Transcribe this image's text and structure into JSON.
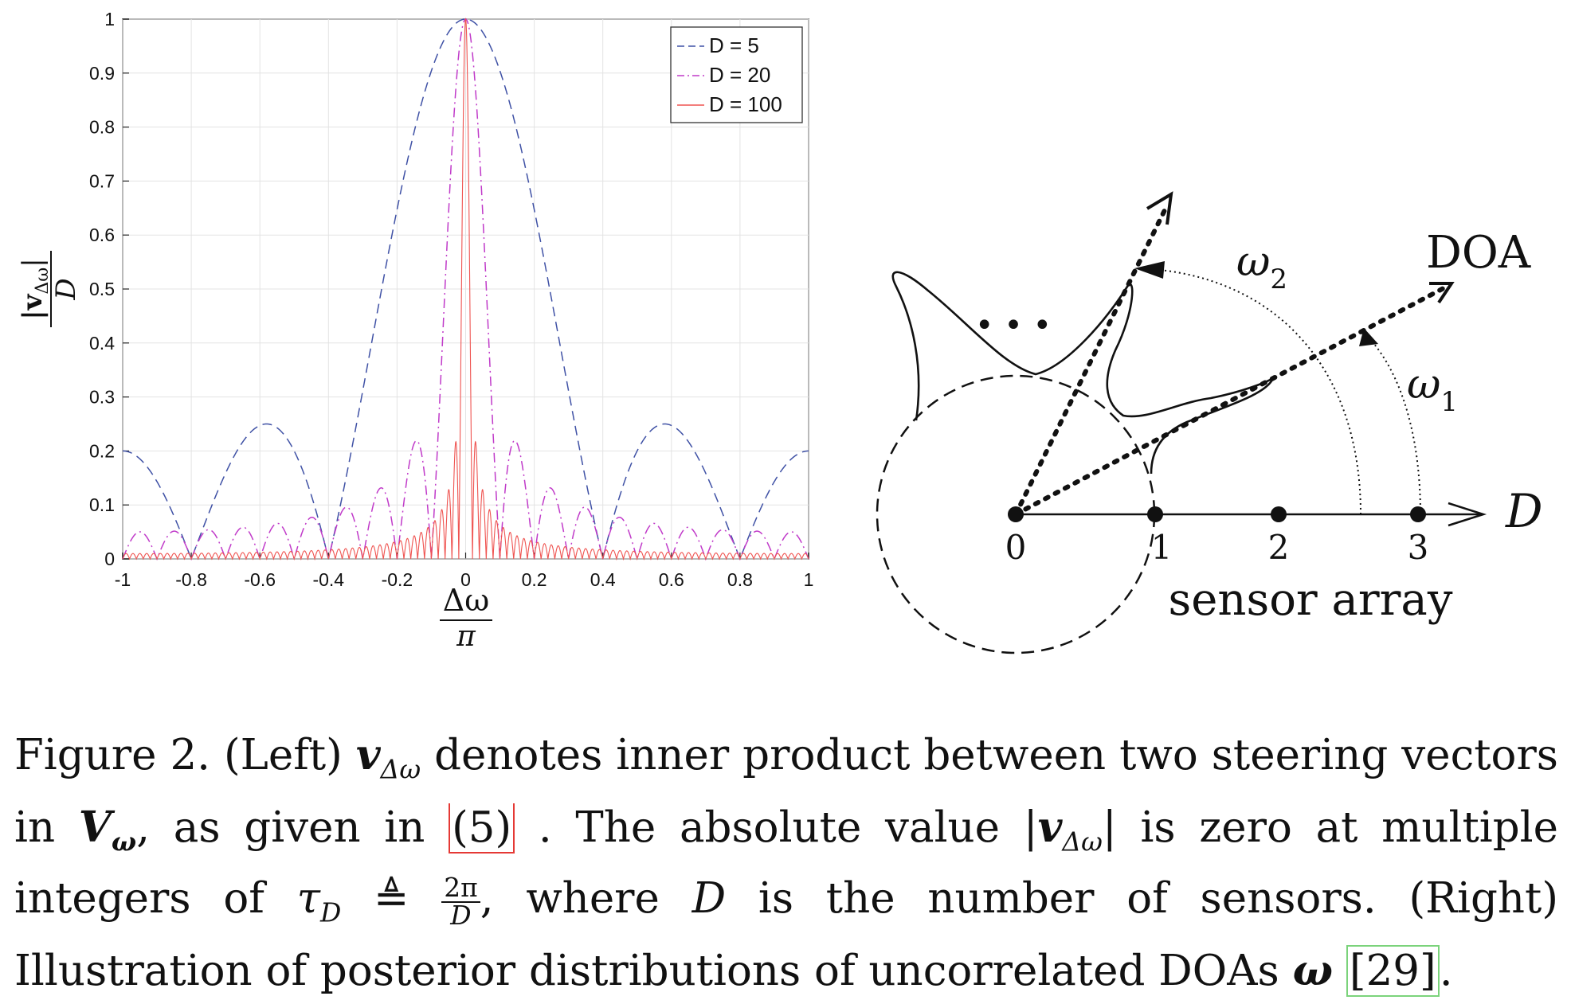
{
  "chart_data": {
    "type": "line",
    "title": "",
    "xlim": [
      -1,
      1
    ],
    "ylim": [
      0,
      1
    ],
    "xticks": [
      "-1",
      "-0.8",
      "-0.6",
      "-0.4",
      "-0.2",
      "0",
      "0.2",
      "0.4",
      "0.6",
      "0.8",
      "1"
    ],
    "yticks": [
      "0",
      "0.1",
      "0.2",
      "0.3",
      "0.4",
      "0.5",
      "0.6",
      "0.7",
      "0.8",
      "0.9",
      "1"
    ],
    "grid": true,
    "legend_placement": "top-right",
    "xlabel_num": "Δω",
    "xlabel_den": "π",
    "ylabel_num": "|v",
    "ylabel_sub": "Δω",
    "ylabel_num_end": "|",
    "ylabel_den": "D",
    "series": [
      {
        "name": "D = 5",
        "D": 5,
        "color": "#3f51a5",
        "style": "dashed"
      },
      {
        "name": "D = 20",
        "D": 20,
        "color": "#c03ac9",
        "style": "dashdot"
      },
      {
        "name": "D = 100",
        "D": 100,
        "color": "#ef5350",
        "style": "solid"
      }
    ]
  },
  "diagram": {
    "doa_label": "DOA",
    "omega1": "ω",
    "omega1_sub": "1",
    "omega2": "ω",
    "omega2_sub": "2",
    "axis_label": "D",
    "array_label": "sensor array",
    "sensor_labels": [
      "0",
      "1",
      "2",
      "3"
    ],
    "ellipsis": "• • •"
  },
  "caption": {
    "p1": "Figure 2.  (Left) ",
    "v": "v",
    "sub_dw": "Δω",
    "p2": " denotes inner product between two steering vectors in ",
    "V": "V",
    "sub_w": "ω",
    "p3": ", as given in ",
    "ref5": "(5)",
    "p4": " . The absolute value |",
    "p5": "| is zero at multiple integers of ",
    "tau": "τ",
    "sub_D": "D",
    "defeq": " ≜ ",
    "frac_num": "2π",
    "frac_den": "D",
    "p6": ", where ",
    "D": "D",
    "p7": " is the number of sensors. (Right) Illustration of posterior distributions of uncorrelated DOAs ",
    "omega": "ω",
    "p8": " ",
    "ref29": "[29]",
    "p9": "."
  }
}
